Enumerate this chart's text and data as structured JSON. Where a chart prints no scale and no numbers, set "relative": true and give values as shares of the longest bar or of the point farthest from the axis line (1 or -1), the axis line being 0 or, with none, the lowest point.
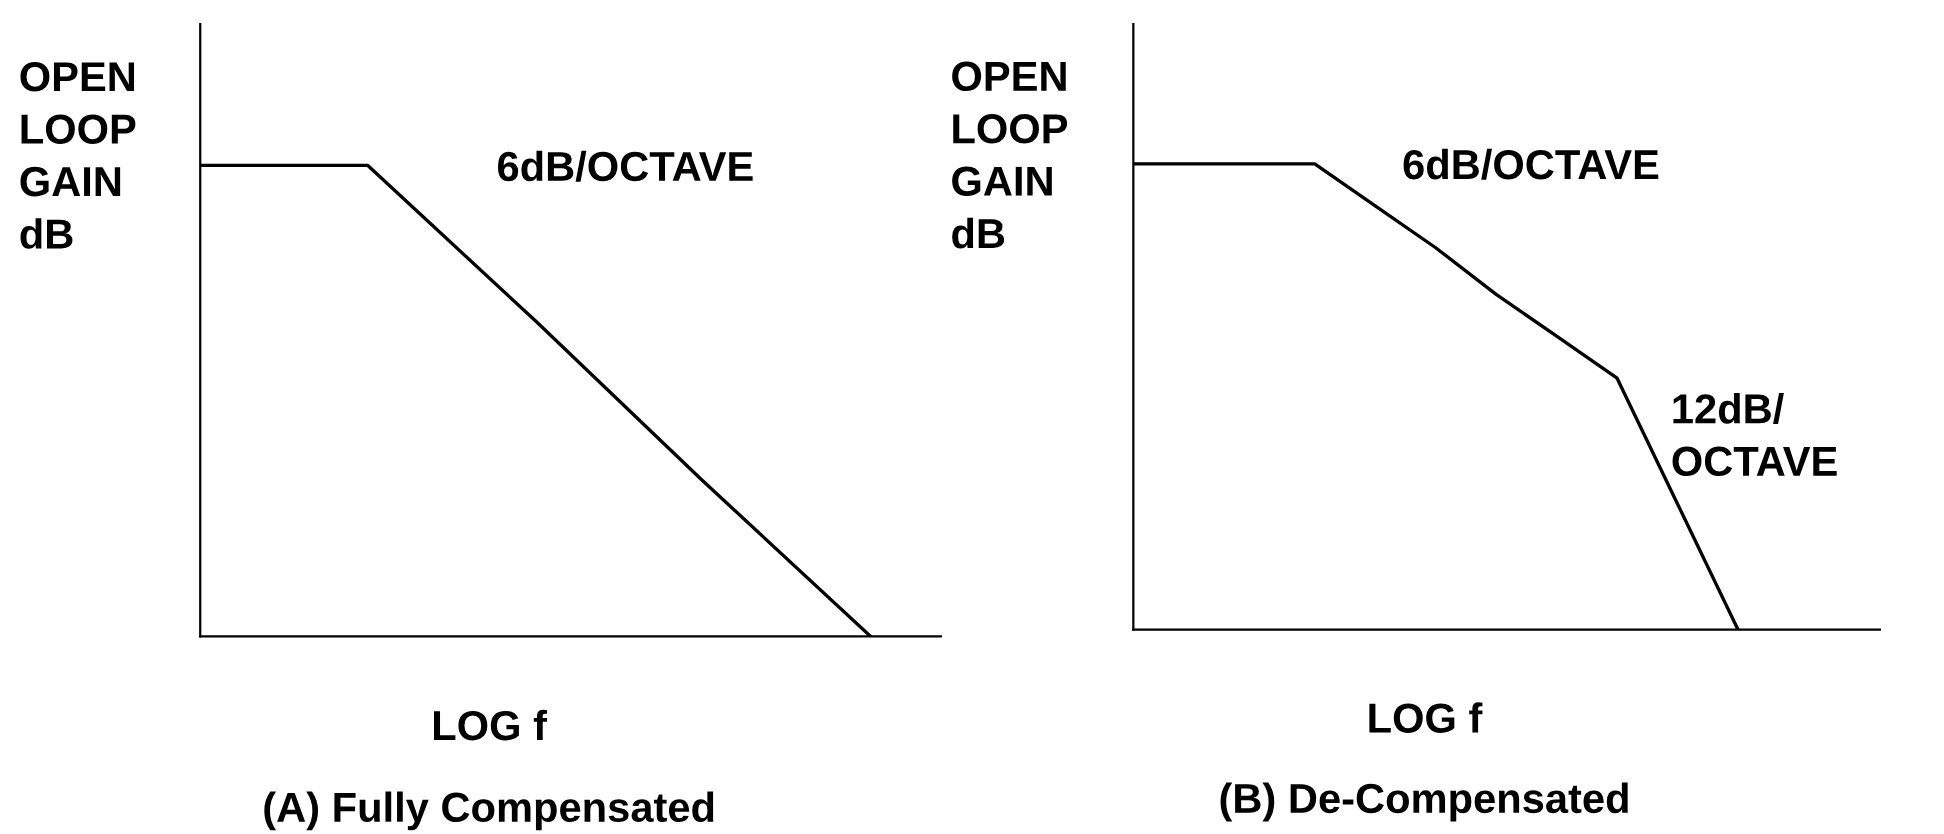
{
  "chart_data": [
    {
      "type": "line",
      "relative": true,
      "title": "(A) Fully Compensated",
      "xlabel": "LOG f",
      "ylabel": "OPEN\nLOOP\nGAIN\ndB",
      "annotations": [
        "6dB/OCTAVE"
      ],
      "categories": [
        null,
        null,
        null,
        null,
        null
      ],
      "series": [
        {
          "values": [
            1,
            1,
            0.67,
            0.33,
            0
          ],
          "color": "#000000"
        }
      ]
    },
    {
      "type": "line",
      "relative": true,
      "title": "(B) De-Compensated",
      "xlabel": "LOG f",
      "ylabel": "OPEN\nLOOP\nGAIN\ndB",
      "annotations": [
        "6dB/OCTAVE",
        "12dB/\nOCTAVE"
      ],
      "categories": [
        null,
        null,
        null,
        null,
        null,
        null,
        null,
        null,
        null,
        null,
        null
      ],
      "series": [
        {
          "values": [
            1,
            1,
            1,
            1,
            0.91,
            0.82,
            0.72,
            0.63,
            0.54,
            0.27,
            0
          ],
          "color": "#000000"
        }
      ]
    }
  ]
}
